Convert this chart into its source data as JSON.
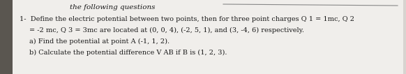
{
  "header": "the following questions",
  "line1": "1-  Define the electric potential between two points, then for three point charges Q 1 = 1mc, Q 2",
  "line2": "= -2 mc, Q 3 = 3mc are located at (0, 0, 4), (-2, 5, 1), and (3, -4, 6) respectively.",
  "line3": "a) Find the potential at point A (-1, 1, 2).",
  "line4": "b) Calculate the potential difference V AB if B is (1, 2, 3).",
  "bg_color": "#d8d4d0",
  "page_color": "#f0eeeb",
  "text_color": "#1a1a1a",
  "header_color": "#1a1a1a",
  "font_size_header": 7.5,
  "font_size_body": 7.0,
  "fig_width": 5.82,
  "fig_height": 1.06,
  "dpi": 100
}
